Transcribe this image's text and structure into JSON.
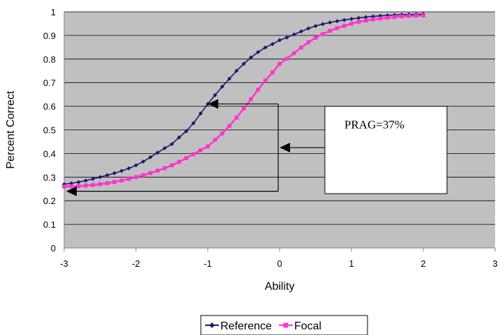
{
  "chart_data": {
    "type": "line",
    "title": "",
    "xlabel": "Ability",
    "ylabel": "Percent Correct",
    "xlim": [
      -3,
      3
    ],
    "ylim": [
      0,
      1
    ],
    "x_ticks": [
      "-3",
      "-2",
      "-1",
      "0",
      "1",
      "2",
      "3"
    ],
    "y_ticks": [
      "0",
      "0.1",
      "0.2",
      "0.3",
      "0.4",
      "0.5",
      "0.6",
      "0.7",
      "0.8",
      "0.9",
      "1"
    ],
    "grid": true,
    "plot_background": "#c0c0c0",
    "legend_position": "bottom",
    "series": [
      {
        "name": "Reference",
        "color": "#1a1a6e",
        "marker": "diamond",
        "x": [
          -3.0,
          -2.5,
          -2.0,
          -1.5,
          -1.25,
          -1.0,
          -0.75,
          -0.5,
          -0.25,
          0.0,
          0.5,
          1.0,
          1.5,
          2.0
        ],
        "y": [
          0.27,
          0.3,
          0.35,
          0.44,
          0.51,
          0.61,
          0.7,
          0.78,
          0.84,
          0.88,
          0.94,
          0.97,
          0.985,
          0.99
        ]
      },
      {
        "name": "Focal",
        "color": "#ff33cc",
        "marker": "square",
        "x": [
          -3.0,
          -2.5,
          -2.0,
          -1.5,
          -1.0,
          -0.75,
          -0.5,
          -0.25,
          0.0,
          0.5,
          1.0,
          1.5,
          2.0
        ],
        "y": [
          0.26,
          0.27,
          0.3,
          0.35,
          0.43,
          0.5,
          0.59,
          0.69,
          0.78,
          0.89,
          0.95,
          0.975,
          0.985
        ]
      }
    ],
    "annotation": {
      "text": "PRAG=37%",
      "box": {
        "x": [
          0.63,
          2.33
        ],
        "y": [
          0.23,
          0.6
        ]
      },
      "bracket": {
        "x_left": -3.0,
        "x_right": -0.02,
        "y_top": 0.61,
        "y_bottom": 0.24,
        "x_inner": -1.0
      },
      "pointer": {
        "from_x": 0.63,
        "to_x": 0.0,
        "y": 0.425
      }
    }
  }
}
